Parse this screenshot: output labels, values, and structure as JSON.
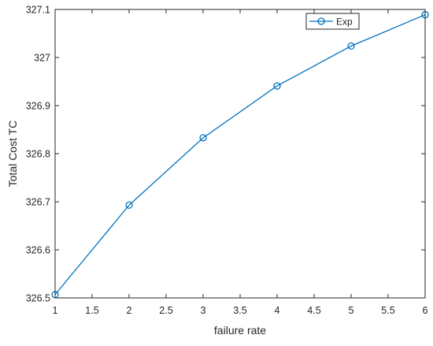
{
  "chart_data": {
    "type": "line",
    "xlabel": "failure rate",
    "ylabel": "Total Cost TC",
    "xlim": [
      1,
      6
    ],
    "ylim": [
      326.5,
      327.1
    ],
    "x_ticks": [
      "1",
      "1.5",
      "2",
      "2.5",
      "3",
      "3.5",
      "4",
      "4.5",
      "5",
      "5.5",
      "6"
    ],
    "y_ticks": [
      "326.5",
      "326.6",
      "326.7",
      "326.8",
      "326.9",
      "327",
      "327.1"
    ],
    "legend_position": "top-right",
    "grid": false,
    "series": [
      {
        "name": "Exp",
        "color": "#0072BD",
        "marker": "circle",
        "x": [
          1,
          2,
          3,
          4,
          5,
          6
        ],
        "values": [
          326.507,
          326.693,
          326.833,
          326.941,
          327.024,
          327.089
        ]
      }
    ]
  }
}
